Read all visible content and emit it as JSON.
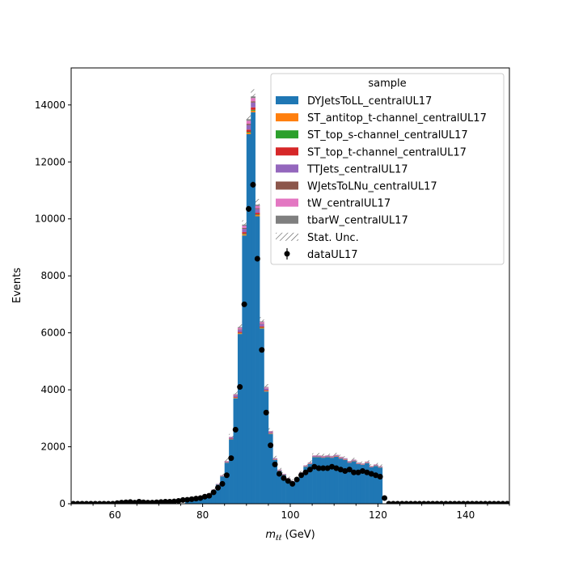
{
  "chart_data": {
    "type": "bar",
    "xlabel_main": "m",
    "xlabel_sub": "ℓℓ",
    "xlabel_unit": " (GeV)",
    "ylabel": "Events",
    "xlim": [
      50,
      150
    ],
    "ylim": [
      0,
      15300
    ],
    "x_ticks": [
      60,
      80,
      100,
      120,
      140
    ],
    "y_ticks": [
      0,
      2000,
      4000,
      6000,
      8000,
      10000,
      12000,
      14000
    ],
    "bin_width": 1,
    "mc_bins_x": [
      76,
      77,
      78,
      79,
      80,
      81,
      82,
      83,
      84,
      85,
      86,
      87,
      88,
      89,
      90,
      91,
      92,
      93,
      94,
      95,
      96,
      97,
      98,
      99,
      100,
      101,
      102,
      103,
      104,
      105,
      106,
      107,
      108,
      109,
      110,
      111,
      112,
      113,
      114,
      115,
      116,
      117,
      118,
      119,
      120
    ],
    "mc_total": [
      80,
      100,
      150,
      200,
      270,
      370,
      500,
      700,
      1000,
      1500,
      2350,
      3850,
      6200,
      9800,
      13500,
      14300,
      10500,
      6400,
      4100,
      2550,
      1600,
      1200,
      1050,
      900,
      800,
      850,
      1100,
      1350,
      1450,
      1700,
      1700,
      1680,
      1700,
      1680,
      1720,
      1650,
      1600,
      1500,
      1550,
      1450,
      1420,
      1480,
      1330,
      1380,
      1320
    ],
    "unc_band_total": [
      80,
      110,
      160,
      210,
      280,
      390,
      530,
      740,
      1060,
      1600,
      2450,
      3950,
      6300,
      9950,
      13650,
      14550,
      10700,
      6550,
      4200,
      2650,
      1680,
      1260,
      1100,
      950,
      850,
      900,
      1150,
      1420,
      1520,
      1770,
      1780,
      1750,
      1780,
      1750,
      1790,
      1720,
      1670,
      1560,
      1610,
      1510,
      1480,
      1540,
      1390,
      1440,
      1380
    ],
    "data_points": {
      "x": [
        50.5,
        51.5,
        52.5,
        53.5,
        54.5,
        55.5,
        56.5,
        57.5,
        58.5,
        59.5,
        60.5,
        61.5,
        62.5,
        63.5,
        64.5,
        65.5,
        66.5,
        67.5,
        68.5,
        69.5,
        70.5,
        71.5,
        72.5,
        73.5,
        74.5,
        75.5,
        76.5,
        77.5,
        78.5,
        79.5,
        80.5,
        81.5,
        82.5,
        83.5,
        84.5,
        85.5,
        86.5,
        87.5,
        88.5,
        89.5,
        90.5,
        91.5,
        92.5,
        93.5,
        94.5,
        95.5,
        96.5,
        97.5,
        98.5,
        99.5,
        100.5,
        101.5,
        102.5,
        103.5,
        104.5,
        105.5,
        106.5,
        107.5,
        108.5,
        109.5,
        110.5,
        111.5,
        112.5,
        113.5,
        114.5,
        115.5,
        116.5,
        117.5,
        118.5,
        119.5,
        120.5,
        121.5,
        122.5,
        123.5,
        124.5,
        125.5,
        126.5,
        127.5,
        128.5,
        129.5,
        130.5,
        131.5,
        132.5,
        133.5,
        134.5,
        135.5,
        136.5,
        137.5,
        138.5,
        139.5,
        140.5,
        141.5,
        142.5,
        143.5,
        144.5,
        145.5,
        146.5,
        147.5,
        148.5,
        149.5
      ],
      "y": [
        0,
        0,
        0,
        0,
        0,
        0,
        0,
        0,
        0,
        0,
        20,
        40,
        50,
        60,
        40,
        70,
        50,
        40,
        40,
        50,
        60,
        70,
        70,
        80,
        100,
        130,
        140,
        160,
        180,
        200,
        250,
        280,
        400,
        560,
        700,
        1000,
        1600,
        2600,
        4100,
        7000,
        10350,
        11200,
        8600,
        5400,
        3200,
        2050,
        1380,
        1050,
        900,
        800,
        700,
        850,
        1000,
        1100,
        1200,
        1300,
        1250,
        1250,
        1250,
        1300,
        1250,
        1200,
        1150,
        1200,
        1100,
        1100,
        1150,
        1100,
        1050,
        1000,
        950,
        200,
        0,
        0,
        0,
        0,
        0,
        0,
        0,
        0,
        0,
        0,
        0,
        0,
        0,
        0,
        0,
        0,
        0,
        0,
        0,
        0,
        0,
        0,
        0,
        0,
        0,
        0,
        0,
        0
      ]
    },
    "series": [
      {
        "name": "DYJetsToLL_centralUL17",
        "color": "#1f77b4"
      },
      {
        "name": "ST_antitop_t-channel_centralUL17",
        "color": "#ff7f0e"
      },
      {
        "name": "ST_top_s-channel_centralUL17",
        "color": "#2ca02c"
      },
      {
        "name": "ST_top_t-channel_centralUL17",
        "color": "#d62728"
      },
      {
        "name": "TTJets_centralUL17",
        "color": "#9467bd"
      },
      {
        "name": "WJetsToLNu_centralUL17",
        "color": "#8c564b"
      },
      {
        "name": "tW_centralUL17",
        "color": "#e377c2"
      },
      {
        "name": "tbarW_centralUL17",
        "color": "#7f7f7f"
      }
    ],
    "unc_label": "Stat. Unc.",
    "data_label": "dataUL17",
    "legend_title": "sample",
    "legend_position": "top-right"
  }
}
